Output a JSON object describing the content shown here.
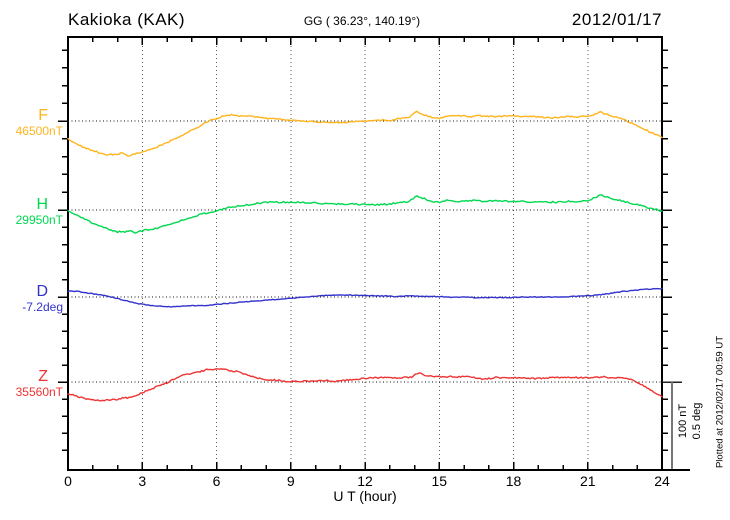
{
  "header": {
    "station": "Kakioka (KAK)",
    "coordinates": "GG ( 36.23°, 140.19°)",
    "date": "2012/01/17"
  },
  "axes": {
    "xlabel": "U T (hour)",
    "xlim": [
      0,
      24
    ],
    "x_major_ticks": [
      0,
      3,
      6,
      9,
      12,
      15,
      18,
      21,
      24
    ],
    "x_minor_tick_step": 1
  },
  "scale_bar": {
    "line1": "100 nT",
    "line2": "0.5 deg"
  },
  "footer_note": "Plotted at 2012/02/17 00:59 UT",
  "chart_data": {
    "type": "line",
    "title": "Kakioka (KAK) magnetogram",
    "xlabel": "U T (hour)",
    "xlim": [
      0,
      24
    ],
    "x_major_tick_step": 3,
    "x_minor_tick_step": 1,
    "grid": "dotted vertical lines every 3 h; dotted horizontal baseline per channel",
    "legend_position": "left margin channel labels",
    "scale": {
      "bar_nT": 100,
      "bar_deg": 0.5,
      "minor_div_nT": 20,
      "minor_div_deg": 0.1
    },
    "series": [
      {
        "id": "F",
        "label": "F",
        "unit": "nT",
        "baseline_label": "46500nT",
        "baseline_value": 46500,
        "color": "#FFB41E",
        "points": [
          [
            0,
            46479
          ],
          [
            0.3,
            46475
          ],
          [
            0.6,
            46470
          ],
          [
            1,
            46466
          ],
          [
            1.3,
            46463
          ],
          [
            1.6,
            46461
          ],
          [
            2,
            46462
          ],
          [
            2.2,
            46464
          ],
          [
            2.4,
            46460
          ],
          [
            2.7,
            46462
          ],
          [
            3,
            46464
          ],
          [
            3.3,
            46467
          ],
          [
            3.6,
            46470
          ],
          [
            4,
            46475
          ],
          [
            4.5,
            46482
          ],
          [
            5,
            46490
          ],
          [
            5.3,
            46494
          ],
          [
            5.6,
            46499
          ],
          [
            6,
            46503
          ],
          [
            6.3,
            46506
          ],
          [
            6.6,
            46507
          ],
          [
            7,
            46506
          ],
          [
            7.5,
            46505
          ],
          [
            8,
            46503
          ],
          [
            8.5,
            46502
          ],
          [
            9,
            46501
          ],
          [
            9.5,
            46500
          ],
          [
            10,
            46499
          ],
          [
            10.5,
            46498
          ],
          [
            11,
            46498
          ],
          [
            11.5,
            46499
          ],
          [
            12,
            46500
          ],
          [
            12.5,
            46501
          ],
          [
            13,
            46501
          ],
          [
            13.5,
            46503
          ],
          [
            13.8,
            46505
          ],
          [
            14.1,
            46511
          ],
          [
            14.4,
            46507
          ],
          [
            14.7,
            46504
          ],
          [
            15,
            46503
          ],
          [
            15.3,
            46505
          ],
          [
            15.8,
            46506
          ],
          [
            16.3,
            46505
          ],
          [
            16.8,
            46506
          ],
          [
            17.3,
            46505
          ],
          [
            17.8,
            46506
          ],
          [
            18.3,
            46505
          ],
          [
            18.8,
            46505
          ],
          [
            19.3,
            46504
          ],
          [
            19.8,
            46504
          ],
          [
            20.3,
            46505
          ],
          [
            20.8,
            46505
          ],
          [
            21,
            46505
          ],
          [
            21.3,
            46508
          ],
          [
            21.5,
            46510
          ],
          [
            21.8,
            46507
          ],
          [
            22,
            46506
          ],
          [
            22.3,
            46503
          ],
          [
            22.6,
            46500
          ],
          [
            23,
            46494
          ],
          [
            23.4,
            46489
          ],
          [
            23.7,
            46485
          ],
          [
            24,
            46481
          ]
        ]
      },
      {
        "id": "H",
        "label": "H",
        "unit": "nT",
        "baseline_label": "29950nT",
        "baseline_value": 29950,
        "color": "#00D850",
        "points": [
          [
            0,
            29949
          ],
          [
            0.3,
            29945
          ],
          [
            0.6,
            29941
          ],
          [
            1,
            29935
          ],
          [
            1.3,
            29932
          ],
          [
            1.6,
            29928
          ],
          [
            2,
            29925
          ],
          [
            2.3,
            29925
          ],
          [
            2.5,
            29926
          ],
          [
            2.7,
            29924
          ],
          [
            3,
            29926
          ],
          [
            3.3,
            29928
          ],
          [
            3.6,
            29929
          ],
          [
            4,
            29933
          ],
          [
            4.5,
            29937
          ],
          [
            5,
            29942
          ],
          [
            5.5,
            29946
          ],
          [
            6,
            29949
          ],
          [
            6.5,
            29953
          ],
          [
            7,
            29955
          ],
          [
            7.5,
            29957
          ],
          [
            8,
            29959
          ],
          [
            8.5,
            29959
          ],
          [
            9,
            29959
          ],
          [
            9.5,
            29959
          ],
          [
            10,
            29958
          ],
          [
            10.5,
            29957
          ],
          [
            11,
            29957
          ],
          [
            11.5,
            29957
          ],
          [
            12,
            29956
          ],
          [
            12.5,
            29956
          ],
          [
            13,
            29957
          ],
          [
            13.5,
            29959
          ],
          [
            13.8,
            29960
          ],
          [
            14.1,
            29966
          ],
          [
            14.4,
            29963
          ],
          [
            14.7,
            29960
          ],
          [
            15,
            29959
          ],
          [
            15.3,
            29961
          ],
          [
            15.8,
            29960
          ],
          [
            16.3,
            29961
          ],
          [
            16.8,
            29960
          ],
          [
            17.3,
            29961
          ],
          [
            17.8,
            29960
          ],
          [
            18.3,
            29960
          ],
          [
            18.8,
            29959
          ],
          [
            19.3,
            29959
          ],
          [
            19.8,
            29959
          ],
          [
            20.3,
            29960
          ],
          [
            20.8,
            29960
          ],
          [
            21,
            29961
          ],
          [
            21.3,
            29964
          ],
          [
            21.5,
            29967
          ],
          [
            21.8,
            29965
          ],
          [
            22,
            29963
          ],
          [
            22.3,
            29961
          ],
          [
            22.6,
            29959
          ],
          [
            23,
            29956
          ],
          [
            23.4,
            29953
          ],
          [
            23.7,
            29951
          ],
          [
            24,
            29949
          ]
        ]
      },
      {
        "id": "D",
        "label": "D",
        "unit": "deg",
        "baseline_label": "-7.2deg",
        "baseline_value": -7.2,
        "color": "#3333CC",
        "points": [
          [
            0,
            -7.166
          ],
          [
            0.4,
            -7.168
          ],
          [
            0.8,
            -7.177
          ],
          [
            1.2,
            -7.186
          ],
          [
            1.6,
            -7.194
          ],
          [
            2,
            -7.209
          ],
          [
            2.4,
            -7.223
          ],
          [
            2.8,
            -7.237
          ],
          [
            3.2,
            -7.246
          ],
          [
            3.6,
            -7.252
          ],
          [
            4,
            -7.255
          ],
          [
            4.4,
            -7.255
          ],
          [
            4.8,
            -7.252
          ],
          [
            5.2,
            -7.249
          ],
          [
            5.6,
            -7.249
          ],
          [
            6,
            -7.243
          ],
          [
            6.4,
            -7.237
          ],
          [
            6.8,
            -7.232
          ],
          [
            7.2,
            -7.226
          ],
          [
            7.6,
            -7.223
          ],
          [
            8,
            -7.217
          ],
          [
            8.4,
            -7.214
          ],
          [
            8.8,
            -7.209
          ],
          [
            9.2,
            -7.206
          ],
          [
            9.6,
            -7.2
          ],
          [
            10,
            -7.194
          ],
          [
            10.4,
            -7.191
          ],
          [
            10.8,
            -7.189
          ],
          [
            11.2,
            -7.189
          ],
          [
            11.6,
            -7.189
          ],
          [
            12,
            -7.191
          ],
          [
            12.4,
            -7.194
          ],
          [
            12.8,
            -7.194
          ],
          [
            13.2,
            -7.197
          ],
          [
            13.6,
            -7.194
          ],
          [
            14,
            -7.194
          ],
          [
            14.4,
            -7.197
          ],
          [
            14.8,
            -7.197
          ],
          [
            15.2,
            -7.2
          ],
          [
            15.6,
            -7.203
          ],
          [
            16,
            -7.2
          ],
          [
            16.4,
            -7.203
          ],
          [
            16.8,
            -7.203
          ],
          [
            17.2,
            -7.203
          ],
          [
            17.6,
            -7.203
          ],
          [
            18,
            -7.203
          ],
          [
            18.4,
            -7.2
          ],
          [
            18.8,
            -7.2
          ],
          [
            19.2,
            -7.2
          ],
          [
            19.6,
            -7.2
          ],
          [
            20,
            -7.2
          ],
          [
            20.4,
            -7.197
          ],
          [
            20.8,
            -7.194
          ],
          [
            21.2,
            -7.191
          ],
          [
            21.6,
            -7.186
          ],
          [
            22,
            -7.177
          ],
          [
            22.4,
            -7.168
          ],
          [
            22.8,
            -7.163
          ],
          [
            23.2,
            -7.157
          ],
          [
            23.6,
            -7.154
          ],
          [
            24,
            -7.151
          ]
        ]
      },
      {
        "id": "Z",
        "label": "Z",
        "unit": "nT",
        "baseline_label": "35560nT",
        "baseline_value": 35560,
        "color": "#EE3333",
        "points": [
          [
            0,
            35547
          ],
          [
            0.4,
            35543
          ],
          [
            0.8,
            35540
          ],
          [
            1.2,
            35539
          ],
          [
            1.6,
            35539
          ],
          [
            2,
            35540
          ],
          [
            2.2,
            35542
          ],
          [
            2.4,
            35542
          ],
          [
            2.8,
            35545
          ],
          [
            3.2,
            35550
          ],
          [
            3.6,
            35555
          ],
          [
            4,
            35559
          ],
          [
            4.4,
            35565
          ],
          [
            4.8,
            35569
          ],
          [
            5.2,
            35571
          ],
          [
            5.6,
            35574
          ],
          [
            6,
            35575
          ],
          [
            6.4,
            35574
          ],
          [
            6.8,
            35572
          ],
          [
            7.2,
            35569
          ],
          [
            7.6,
            35565
          ],
          [
            8,
            35563
          ],
          [
            8.4,
            35562
          ],
          [
            8.8,
            35561
          ],
          [
            9.2,
            35561
          ],
          [
            9.6,
            35561
          ],
          [
            10,
            35561
          ],
          [
            10.4,
            35562
          ],
          [
            10.8,
            35561
          ],
          [
            11.2,
            35562
          ],
          [
            11.6,
            35563
          ],
          [
            12,
            35564
          ],
          [
            12.4,
            35565
          ],
          [
            12.8,
            35565
          ],
          [
            13.2,
            35565
          ],
          [
            13.6,
            35565
          ],
          [
            13.9,
            35566
          ],
          [
            14.2,
            35571
          ],
          [
            14.5,
            35567
          ],
          [
            14.8,
            35566
          ],
          [
            15.2,
            35566
          ],
          [
            15.6,
            35566
          ],
          [
            16,
            35566
          ],
          [
            16.4,
            35565
          ],
          [
            16.8,
            35563
          ],
          [
            17.2,
            35565
          ],
          [
            17.6,
            35565
          ],
          [
            18,
            35565
          ],
          [
            18.4,
            35565
          ],
          [
            18.8,
            35564
          ],
          [
            19.2,
            35564
          ],
          [
            19.6,
            35565
          ],
          [
            20,
            35565
          ],
          [
            20.4,
            35565
          ],
          [
            20.8,
            35565
          ],
          [
            21.2,
            35565
          ],
          [
            21.6,
            35566
          ],
          [
            22,
            35565
          ],
          [
            22.4,
            35565
          ],
          [
            22.8,
            35562
          ],
          [
            23.2,
            35557
          ],
          [
            23.6,
            35550
          ],
          [
            24,
            35543
          ]
        ]
      }
    ]
  }
}
